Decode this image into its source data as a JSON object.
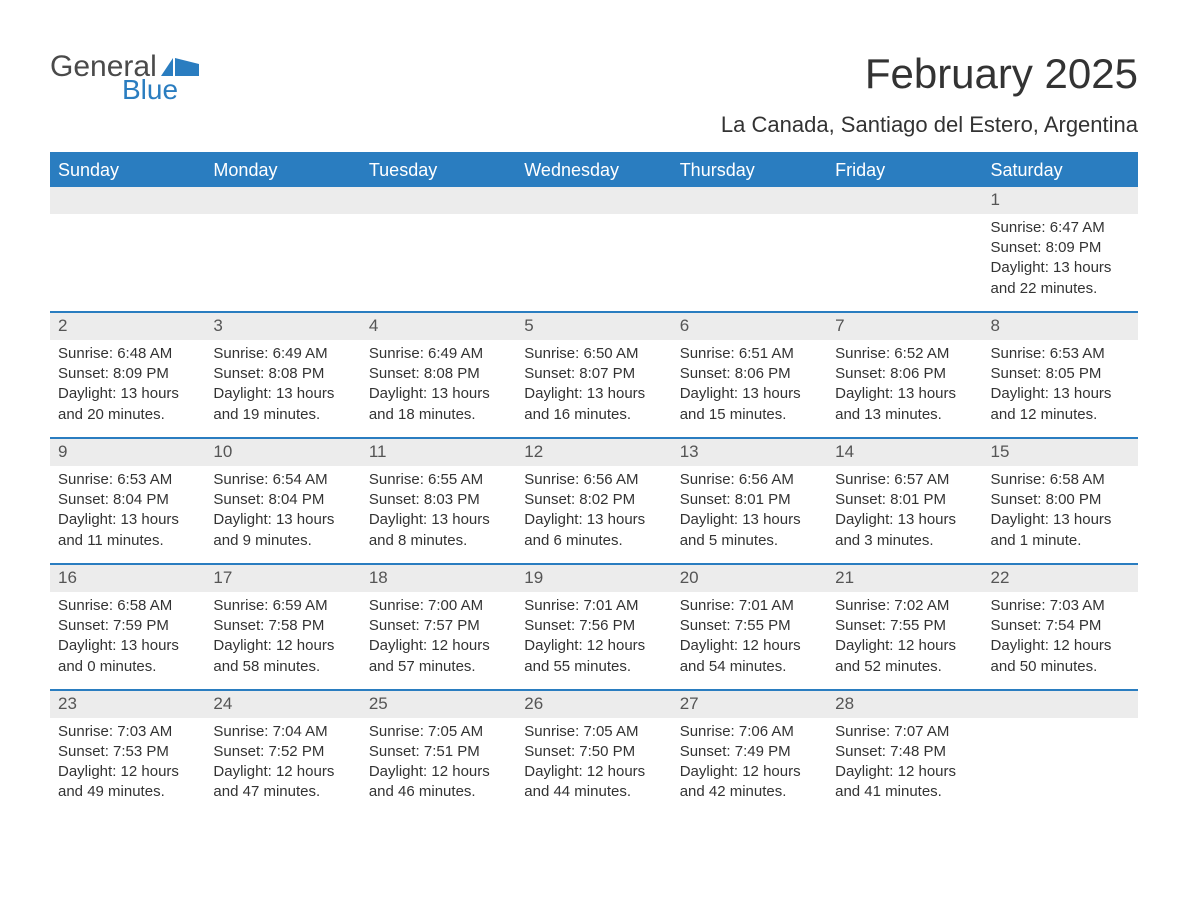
{
  "logo": {
    "general": "General",
    "blue": "Blue"
  },
  "title": "February 2025",
  "location": "La Canada, Santiago del Estero, Argentina",
  "colors": {
    "header_bg": "#2a7dc0",
    "header_text": "#ffffff",
    "row_border": "#2a7dc0",
    "daynum_bg": "#ececec",
    "text": "#333333",
    "logo_gray": "#4a4a4a",
    "logo_blue": "#2a7dc0",
    "background": "#ffffff"
  },
  "typography": {
    "title_fontsize": 42,
    "location_fontsize": 22,
    "dayheader_fontsize": 18,
    "daynum_fontsize": 17,
    "body_fontsize": 15
  },
  "day_names": [
    "Sunday",
    "Monday",
    "Tuesday",
    "Wednesday",
    "Thursday",
    "Friday",
    "Saturday"
  ],
  "weeks": [
    [
      null,
      null,
      null,
      null,
      null,
      null,
      {
        "day": "1",
        "sunrise": "Sunrise: 6:47 AM",
        "sunset": "Sunset: 8:09 PM",
        "daylight": "Daylight: 13 hours and 22 minutes."
      }
    ],
    [
      {
        "day": "2",
        "sunrise": "Sunrise: 6:48 AM",
        "sunset": "Sunset: 8:09 PM",
        "daylight": "Daylight: 13 hours and 20 minutes."
      },
      {
        "day": "3",
        "sunrise": "Sunrise: 6:49 AM",
        "sunset": "Sunset: 8:08 PM",
        "daylight": "Daylight: 13 hours and 19 minutes."
      },
      {
        "day": "4",
        "sunrise": "Sunrise: 6:49 AM",
        "sunset": "Sunset: 8:08 PM",
        "daylight": "Daylight: 13 hours and 18 minutes."
      },
      {
        "day": "5",
        "sunrise": "Sunrise: 6:50 AM",
        "sunset": "Sunset: 8:07 PM",
        "daylight": "Daylight: 13 hours and 16 minutes."
      },
      {
        "day": "6",
        "sunrise": "Sunrise: 6:51 AM",
        "sunset": "Sunset: 8:06 PM",
        "daylight": "Daylight: 13 hours and 15 minutes."
      },
      {
        "day": "7",
        "sunrise": "Sunrise: 6:52 AM",
        "sunset": "Sunset: 8:06 PM",
        "daylight": "Daylight: 13 hours and 13 minutes."
      },
      {
        "day": "8",
        "sunrise": "Sunrise: 6:53 AM",
        "sunset": "Sunset: 8:05 PM",
        "daylight": "Daylight: 13 hours and 12 minutes."
      }
    ],
    [
      {
        "day": "9",
        "sunrise": "Sunrise: 6:53 AM",
        "sunset": "Sunset: 8:04 PM",
        "daylight": "Daylight: 13 hours and 11 minutes."
      },
      {
        "day": "10",
        "sunrise": "Sunrise: 6:54 AM",
        "sunset": "Sunset: 8:04 PM",
        "daylight": "Daylight: 13 hours and 9 minutes."
      },
      {
        "day": "11",
        "sunrise": "Sunrise: 6:55 AM",
        "sunset": "Sunset: 8:03 PM",
        "daylight": "Daylight: 13 hours and 8 minutes."
      },
      {
        "day": "12",
        "sunrise": "Sunrise: 6:56 AM",
        "sunset": "Sunset: 8:02 PM",
        "daylight": "Daylight: 13 hours and 6 minutes."
      },
      {
        "day": "13",
        "sunrise": "Sunrise: 6:56 AM",
        "sunset": "Sunset: 8:01 PM",
        "daylight": "Daylight: 13 hours and 5 minutes."
      },
      {
        "day": "14",
        "sunrise": "Sunrise: 6:57 AM",
        "sunset": "Sunset: 8:01 PM",
        "daylight": "Daylight: 13 hours and 3 minutes."
      },
      {
        "day": "15",
        "sunrise": "Sunrise: 6:58 AM",
        "sunset": "Sunset: 8:00 PM",
        "daylight": "Daylight: 13 hours and 1 minute."
      }
    ],
    [
      {
        "day": "16",
        "sunrise": "Sunrise: 6:58 AM",
        "sunset": "Sunset: 7:59 PM",
        "daylight": "Daylight: 13 hours and 0 minutes."
      },
      {
        "day": "17",
        "sunrise": "Sunrise: 6:59 AM",
        "sunset": "Sunset: 7:58 PM",
        "daylight": "Daylight: 12 hours and 58 minutes."
      },
      {
        "day": "18",
        "sunrise": "Sunrise: 7:00 AM",
        "sunset": "Sunset: 7:57 PM",
        "daylight": "Daylight: 12 hours and 57 minutes."
      },
      {
        "day": "19",
        "sunrise": "Sunrise: 7:01 AM",
        "sunset": "Sunset: 7:56 PM",
        "daylight": "Daylight: 12 hours and 55 minutes."
      },
      {
        "day": "20",
        "sunrise": "Sunrise: 7:01 AM",
        "sunset": "Sunset: 7:55 PM",
        "daylight": "Daylight: 12 hours and 54 minutes."
      },
      {
        "day": "21",
        "sunrise": "Sunrise: 7:02 AM",
        "sunset": "Sunset: 7:55 PM",
        "daylight": "Daylight: 12 hours and 52 minutes."
      },
      {
        "day": "22",
        "sunrise": "Sunrise: 7:03 AM",
        "sunset": "Sunset: 7:54 PM",
        "daylight": "Daylight: 12 hours and 50 minutes."
      }
    ],
    [
      {
        "day": "23",
        "sunrise": "Sunrise: 7:03 AM",
        "sunset": "Sunset: 7:53 PM",
        "daylight": "Daylight: 12 hours and 49 minutes."
      },
      {
        "day": "24",
        "sunrise": "Sunrise: 7:04 AM",
        "sunset": "Sunset: 7:52 PM",
        "daylight": "Daylight: 12 hours and 47 minutes."
      },
      {
        "day": "25",
        "sunrise": "Sunrise: 7:05 AM",
        "sunset": "Sunset: 7:51 PM",
        "daylight": "Daylight: 12 hours and 46 minutes."
      },
      {
        "day": "26",
        "sunrise": "Sunrise: 7:05 AM",
        "sunset": "Sunset: 7:50 PM",
        "daylight": "Daylight: 12 hours and 44 minutes."
      },
      {
        "day": "27",
        "sunrise": "Sunrise: 7:06 AM",
        "sunset": "Sunset: 7:49 PM",
        "daylight": "Daylight: 12 hours and 42 minutes."
      },
      {
        "day": "28",
        "sunrise": "Sunrise: 7:07 AM",
        "sunset": "Sunset: 7:48 PM",
        "daylight": "Daylight: 12 hours and 41 minutes."
      },
      null
    ]
  ]
}
